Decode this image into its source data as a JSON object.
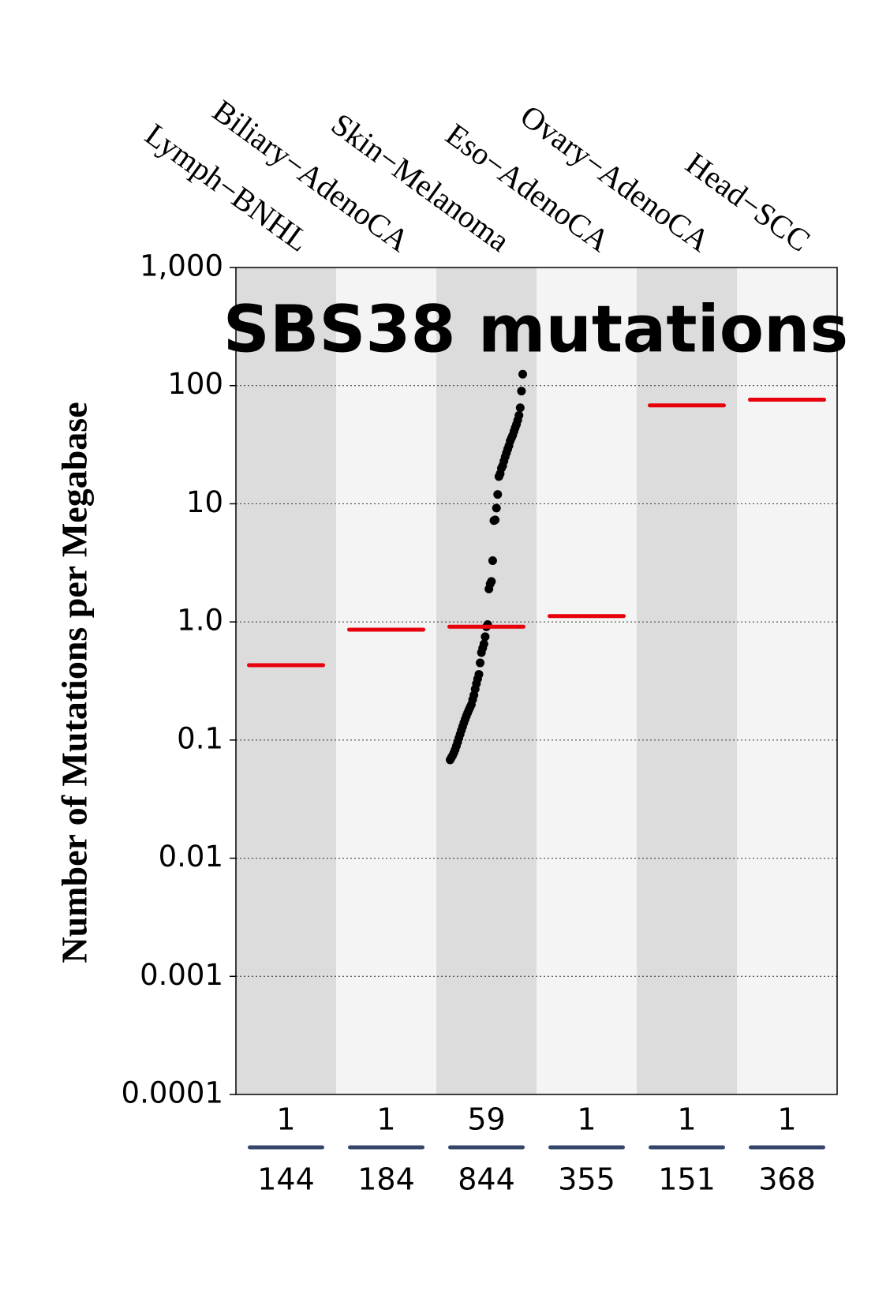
{
  "chart_data": {
    "type": "strip",
    "title": "SBS38 mutations",
    "ylabel": "Number of Mutations per Megabase",
    "categories": [
      "Lymph−BNHL",
      "Biliary−AdenoCA",
      "Skin−Melanoma",
      "Eso−AdenoCA",
      "Ovary−AdenoCA",
      "Head−SCC"
    ],
    "medians": [
      0.43,
      0.86,
      0.91,
      1.12,
      68,
      76
    ],
    "points": [
      [],
      [],
      [
        0.068,
        0.071,
        0.074,
        0.078,
        0.083,
        0.089,
        0.096,
        0.104,
        0.112,
        0.121,
        0.13,
        0.14,
        0.15,
        0.16,
        0.17,
        0.18,
        0.19,
        0.2,
        0.22,
        0.24,
        0.27,
        0.3,
        0.33,
        0.36,
        0.45,
        0.55,
        0.6,
        0.65,
        0.75,
        0.91,
        0.95,
        1.9,
        2.1,
        2.2,
        3.3,
        7.2,
        7.3,
        9.2,
        12,
        17,
        18,
        20,
        21,
        23,
        25,
        27,
        29,
        31,
        34,
        36,
        38,
        41,
        44,
        47,
        51,
        56,
        65,
        90,
        125
      ],
      [],
      [],
      []
    ],
    "samples_with": [
      1,
      1,
      59,
      1,
      1,
      1
    ],
    "samples_total": [
      144,
      184,
      844,
      355,
      151,
      368
    ],
    "ylim": [
      0.0001,
      1000
    ],
    "yticks": [
      {
        "value": 1000,
        "label": "1,000"
      },
      100,
      10,
      {
        "value": 1,
        "label": "1.0"
      },
      0.1,
      0.01,
      0.001,
      0.0001
    ],
    "log_y": true,
    "grid": true,
    "band_colors": [
      "#dcdcdc",
      "#f4f4f4"
    ],
    "median_color": "#e8000b",
    "point_color": "#000000",
    "count_line_color": "#35466b"
  }
}
